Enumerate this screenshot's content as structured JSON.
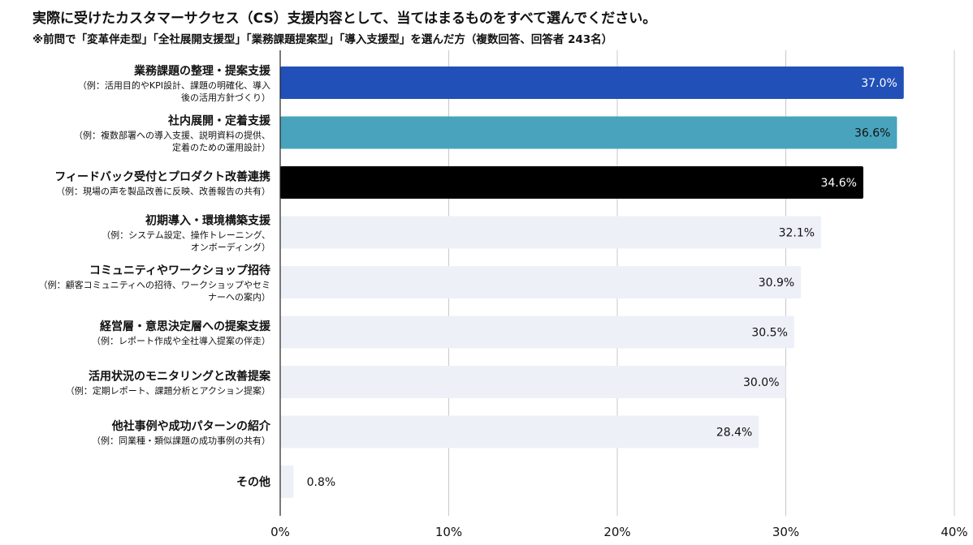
{
  "header": {
    "title": "実際に受けたカスタマーサクセス（CS）支援内容として、当てはまるものをすべて選んでください。",
    "subtitle": "※前問で「変革伴走型」「全社展開支援型」「業務課題提案型」「導入支援型」を選んだ方（複数回答、回答者 243名）"
  },
  "chart_data": {
    "type": "bar",
    "orientation": "horizontal",
    "title": "実際に受けたカスタマーサクセス（CS）支援内容として、当てはまるものをすべて選んでください。",
    "subtitle": "※前問で「変革伴走型」「全社展開支援型」「業務課題提案型」「導入支援型」を選んだ方（複数回答、回答者 243名）",
    "xlabel": "",
    "ylabel": "",
    "xlim": [
      0,
      40
    ],
    "x_ticks": [
      "0%",
      "10%",
      "20%",
      "30%",
      "40%"
    ],
    "grid": true,
    "legend": "none",
    "categories": [
      {
        "label": "業務課題の整理・提案支援",
        "example": [
          "（例：活用目的やKPI設計、課題の明確化、導入",
          "後の活用方針づくり）"
        ],
        "value": 37.0,
        "value_label": "37.0%",
        "color": "#2150b8",
        "label_color": "#ffffff"
      },
      {
        "label": "社内展開・定着支援",
        "example": [
          "（例：複数部署への導入支援、説明資料の提供、",
          "定着のための運用設計）"
        ],
        "value": 36.6,
        "value_label": "36.6%",
        "color": "#49a3bd",
        "label_color": "#111111"
      },
      {
        "label": "フィードバック受付とプロダクト改善連携",
        "example": [
          "（例：現場の声を製品改善に反映、改善報告の共有）"
        ],
        "value": 34.6,
        "value_label": "34.6%",
        "color": "#000000",
        "label_color": "#ffffff"
      },
      {
        "label": "初期導入・環境構築支援",
        "example": [
          "（例：システム設定、操作トレーニング、",
          "オンボーディング）"
        ],
        "value": 32.1,
        "value_label": "32.1%",
        "color": "#eef0f8",
        "label_color": "#111111"
      },
      {
        "label": "コミュニティやワークショップ招待",
        "example": [
          "（例：顧客コミュニティへの招待、ワークショップやセミ",
          "ナーへの案内）"
        ],
        "value": 30.9,
        "value_label": "30.9%",
        "color": "#eef0f8",
        "label_color": "#111111"
      },
      {
        "label": "経営層・意思決定層への提案支援",
        "example": [
          "（例：レポート作成や全社導入提案の伴走）"
        ],
        "value": 30.5,
        "value_label": "30.5%",
        "color": "#eef0f8",
        "label_color": "#111111"
      },
      {
        "label": "活用状況のモニタリングと改善提案",
        "example": [
          "（例：定期レポート、課題分析とアクション提案）"
        ],
        "value": 30.0,
        "value_label": "30.0%",
        "color": "#eef0f8",
        "label_color": "#111111"
      },
      {
        "label": "他社事例や成功パターンの紹介",
        "example": [
          "（例：同業種・類似課題の成功事例の共有）"
        ],
        "value": 28.4,
        "value_label": "28.4%",
        "color": "#eef0f8",
        "label_color": "#111111"
      },
      {
        "label": "その他",
        "example": [],
        "value": 0.8,
        "value_label": "0.8%",
        "color": "#eef0f8",
        "label_color": "#111111"
      }
    ]
  }
}
